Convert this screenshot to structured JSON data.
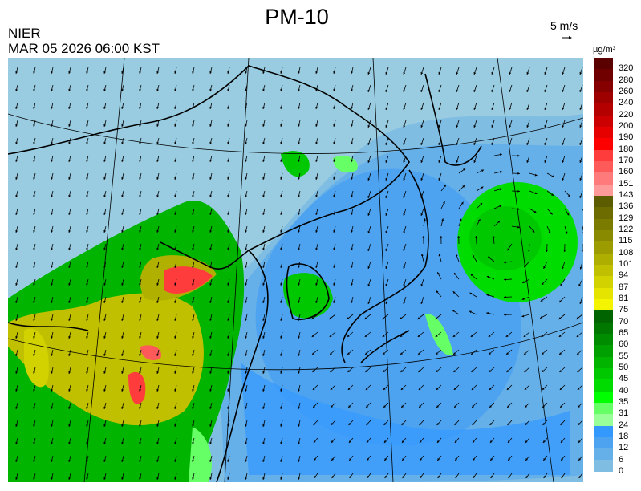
{
  "header": {
    "title": "PM-10",
    "organization": "NIER",
    "timestamp": "MAR 05 2026 06:00 KST"
  },
  "wind_scale": {
    "label": "5 m/s"
  },
  "legend": {
    "unit": "µg/m³",
    "labels": [
      "320",
      "280",
      "260",
      "240",
      "220",
      "200",
      "190",
      "180",
      "170",
      "160",
      "151",
      "143",
      "136",
      "129",
      "122",
      "115",
      "108",
      "101",
      "94",
      "87",
      "81",
      "75",
      "70",
      "65",
      "60",
      "55",
      "50",
      "45",
      "40",
      "35",
      "31",
      "24",
      "18",
      "12",
      "6",
      "0"
    ],
    "colors": [
      "#5a0000",
      "#700000",
      "#870000",
      "#9e0000",
      "#b50000",
      "#cc0000",
      "#e60000",
      "#ff0000",
      "#ff3c3c",
      "#ff5a5a",
      "#ff7a7a",
      "#ff9a9a",
      "#5c5c00",
      "#6c6c00",
      "#7b7b00",
      "#8a8a00",
      "#9c9c00",
      "#aeae00",
      "#c0c000",
      "#d2d200",
      "#e4e400",
      "#f4f400",
      "#006400",
      "#007800",
      "#008c00",
      "#00a000",
      "#00b400",
      "#00c800",
      "#00dc00",
      "#00ff00",
      "#66ff66",
      "#99ff99",
      "#3399ff",
      "#4da3f0",
      "#66b0ea",
      "#80bde3"
    ]
  },
  "colors": {
    "background_low": "#99cce0",
    "ocean_mid": "#4da3f0",
    "land_green": "#00b400",
    "land_yellow": "#c0c000",
    "land_red": "#ff5a5a"
  }
}
